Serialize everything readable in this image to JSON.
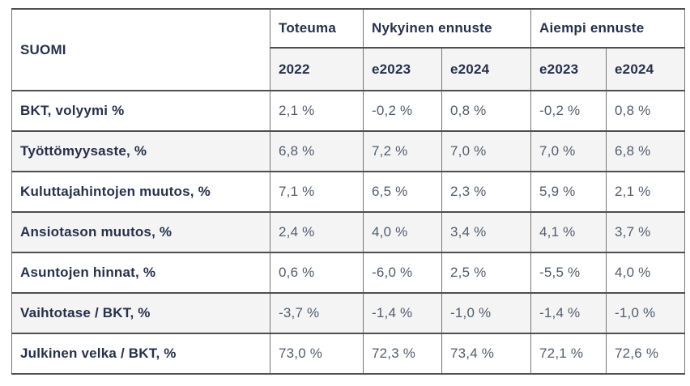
{
  "chart_data": {
    "type": "table",
    "title": "SUOMI",
    "corner_label": "SUOMI",
    "unit": "%",
    "decimal_separator": ",",
    "column_groups": [
      {
        "label": "Toteuma",
        "columns": [
          "2022"
        ]
      },
      {
        "label": "Nykyinen ennuste",
        "columns": [
          "e2023",
          "e2024"
        ]
      },
      {
        "label": "Aiempi ennuste",
        "columns": [
          "e2023",
          "e2024"
        ]
      }
    ],
    "rows": [
      {
        "label": "BKT, volyymi %",
        "values": [
          "2,1 %",
          "-0,2 %",
          "0,8 %",
          "-0,2 %",
          "0,8 %"
        ],
        "values_numeric": [
          2.1,
          -0.2,
          0.8,
          -0.2,
          0.8
        ]
      },
      {
        "label": "Työttömyysaste, %",
        "values": [
          "6,8 %",
          "7,2 %",
          "7,0 %",
          "7,0 %",
          "6,8 %"
        ],
        "values_numeric": [
          6.8,
          7.2,
          7.0,
          7.0,
          6.8
        ]
      },
      {
        "label": "Kuluttajahintojen muutos, %",
        "values": [
          "7,1 %",
          "6,5 %",
          "2,3 %",
          "5,9 %",
          "2,1 %"
        ],
        "values_numeric": [
          7.1,
          6.5,
          2.3,
          5.9,
          2.1
        ]
      },
      {
        "label": "Ansiotason muutos, %",
        "values": [
          "2,4 %",
          "4,0 %",
          "3,4 %",
          "4,1 %",
          "3,7 %"
        ],
        "values_numeric": [
          2.4,
          4.0,
          3.4,
          4.1,
          3.7
        ]
      },
      {
        "label": "Asuntojen hinnat, %",
        "values": [
          "0,6 %",
          "-6,0 %",
          "2,5 %",
          "-5,5 %",
          "4,0 %"
        ],
        "values_numeric": [
          0.6,
          -6.0,
          2.5,
          -5.5,
          4.0
        ]
      },
      {
        "label": "Vaihtotase / BKT, %",
        "values": [
          "-3,7 %",
          "-1,4 %",
          "-1,0 %",
          "-1,4 %",
          "-1,0 %"
        ],
        "values_numeric": [
          -3.7,
          -1.4,
          -1.0,
          -1.4,
          -1.0
        ]
      },
      {
        "label": "Julkinen velka / BKT, %",
        "values": [
          "73,0 %",
          "72,3 %",
          "73,4 %",
          "72,1 %",
          "72,6 %"
        ],
        "values_numeric": [
          73.0,
          72.3,
          73.4,
          72.1,
          72.6
        ]
      }
    ],
    "colors": {
      "header_text": "#26314a",
      "value_text": "#525d6f",
      "border_horizontal": "#4f4f4f",
      "border_vertical": "#767676",
      "alt_row_background": "#f4f4f4",
      "background": "#ffffff"
    },
    "layout": {
      "grid": "on",
      "header_rows": 2,
      "striped_rows": true
    }
  }
}
